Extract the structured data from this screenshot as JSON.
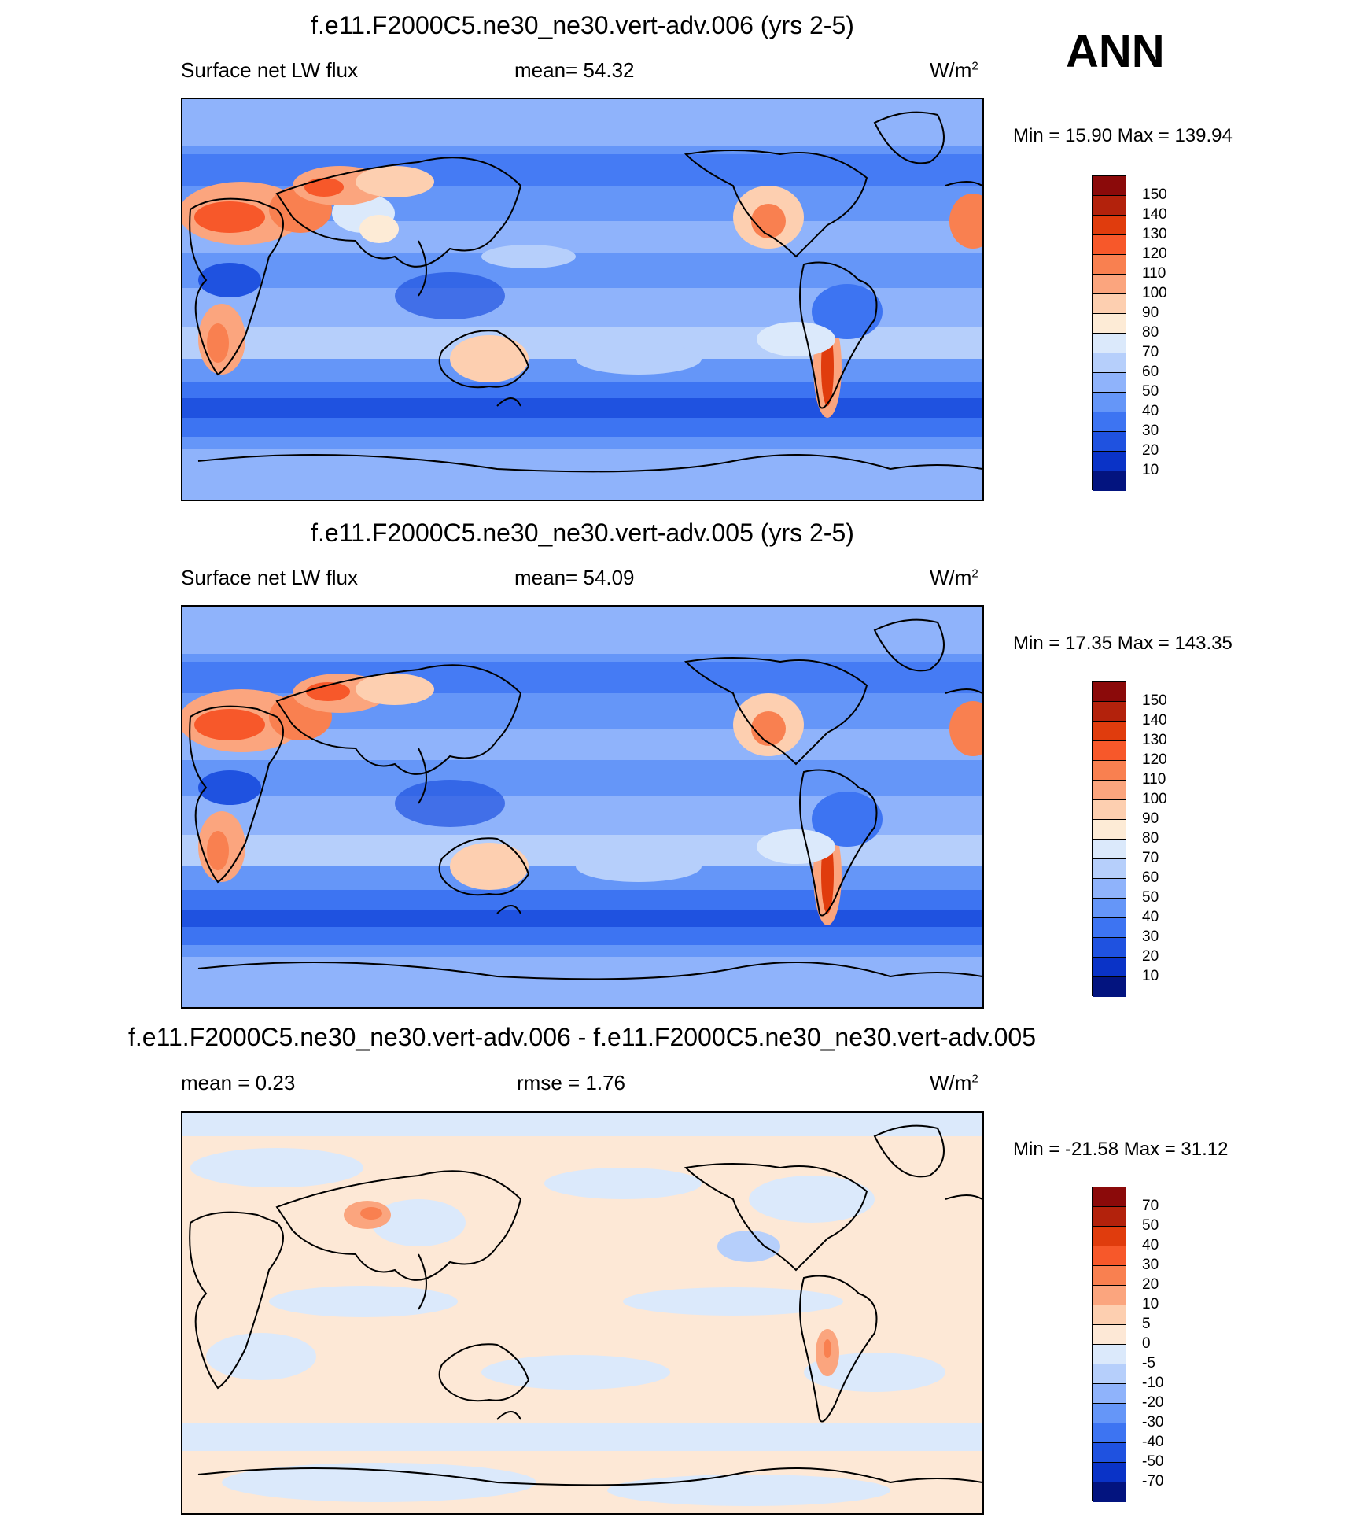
{
  "season": "ANN",
  "units": "W/m",
  "units_sup": "2",
  "panels": [
    {
      "title": "f.e11.F2000C5.ne30_ne30.vert-adv.006 (yrs 2-5)",
      "variable": "Surface net LW flux",
      "stat1": "mean=  54.32",
      "minmax": "Min =  15.90 Max = 139.94"
    },
    {
      "title": "f.e11.F2000C5.ne30_ne30.vert-adv.005 (yrs 2-5)",
      "variable": "Surface net LW flux",
      "stat1": "mean=  54.09",
      "minmax": "Min =  17.35 Max = 143.35"
    },
    {
      "title": "f.e11.F2000C5.ne30_ne30.vert-adv.006 - f.e11.F2000C5.ne30_ne30.vert-adv.005",
      "stat1": "mean =   0.23",
      "stat2": "rmse =   1.76",
      "minmax": "Min = -21.58 Max =  31.12"
    }
  ],
  "colorbar_main": {
    "labels": [
      "150",
      "140",
      "130",
      "120",
      "110",
      "100",
      "90",
      "80",
      "70",
      "60",
      "50",
      "40",
      "30",
      "20",
      "10"
    ],
    "colors": [
      "#8b0a0a",
      "#b3220c",
      "#e03c0d",
      "#f7582a",
      "#f98050",
      "#fba57e",
      "#fdcfb0",
      "#fdebd6",
      "#dbe9fb",
      "#b6cffb",
      "#8fb3fb",
      "#6596f8",
      "#3d74f2",
      "#1f52e0",
      "#0a33c7",
      "#03147f"
    ]
  },
  "colorbar_diff": {
    "labels": [
      "70",
      "50",
      "40",
      "30",
      "20",
      "10",
      "5",
      "0",
      "-5",
      "-10",
      "-20",
      "-30",
      "-40",
      "-50",
      "-70"
    ],
    "colors": [
      "#8b0a0a",
      "#b3220c",
      "#e03c0d",
      "#f7582a",
      "#f98050",
      "#fba57e",
      "#fdcfb0",
      "#fde8d6",
      "#dbe9fb",
      "#b6cffb",
      "#8fb3fb",
      "#6596f8",
      "#3d74f2",
      "#1f52e0",
      "#0a33c7",
      "#03147f"
    ]
  }
}
